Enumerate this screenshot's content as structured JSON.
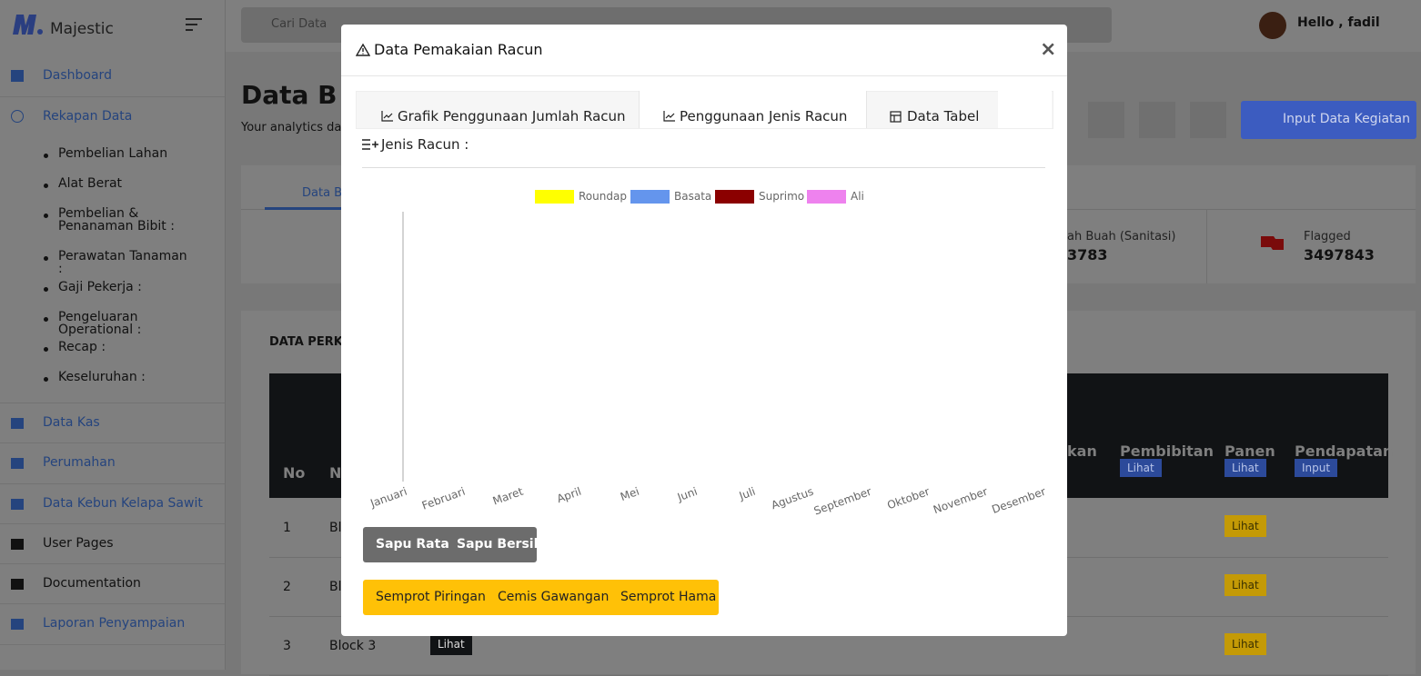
{
  "sidebar": {
    "brand": "Majestic",
    "items": [
      "Dashboard",
      "Rekapan Data"
    ],
    "subitems": [
      "Pembelian Lahan",
      "Alat Berat",
      "Pembelian & Penanaman Bibit :",
      "Perawatan Tanaman :",
      "Gaji Pekerja :",
      "Pengeluaran Operational :",
      "Recap :",
      "Keseluruhan :"
    ],
    "items_after": [
      "Data Kas",
      "Perumahan",
      "Data Kebun Kelapa Sawit",
      "User Pages",
      "Documentation",
      "Laporan Penyampaian"
    ]
  },
  "topbar": {
    "search": "Cari Data",
    "user": "Hello , fadil"
  },
  "page": {
    "title": "Data B",
    "subtitle": "Your analytics das",
    "button": "Input Data Kegiatan",
    "tab": "Data B",
    "stat1_label": "ah Buah (Sanitasi)",
    "stat1_value": "3783",
    "stat2_label": "Flagged",
    "stat2_value": "3497843",
    "section": "DATA PERKE",
    "table": {
      "headers": [
        "No",
        "Na",
        "kan",
        "Pembibitan",
        "Panen",
        "Pendapatan"
      ],
      "header_buttons": [
        "Lihat",
        "Lihat",
        "Input"
      ],
      "rows": [
        [
          "1",
          "Bl",
          "Lihat"
        ],
        [
          "2",
          "Bl",
          "Lihat"
        ],
        [
          "3",
          "Block 3",
          "Lihat",
          "Lihat"
        ]
      ]
    }
  },
  "modal": {
    "title": "Data Pemakaian Racun",
    "close": "×",
    "tabs": [
      "Grafik Penggunaan Jumlah Racun",
      "Penggunaan Jenis Racun",
      "Data Tabel"
    ],
    "heading": "Jenis Racun :",
    "chart": {
      "type": "line",
      "categories": [
        "Januari",
        "Februari",
        "Maret",
        "April",
        "Mei",
        "Juni",
        "Juli",
        "Agustus",
        "September",
        "Oktober",
        "November",
        "Desember"
      ],
      "series": [
        {
          "name": "Roundap",
          "color": "#ffff00"
        },
        {
          "name": "Basata",
          "color": "#6495ed"
        },
        {
          "name": "Suprimo",
          "color": "#8b0000"
        },
        {
          "name": "Ali",
          "color": "#ee82ee"
        }
      ]
    },
    "buttons_gray": [
      "Sapu Rata",
      "Sapu Bersih"
    ],
    "buttons_yellow": [
      "Semprot Piringan",
      "Cemis Gawangan",
      "Semprot Hama"
    ]
  }
}
